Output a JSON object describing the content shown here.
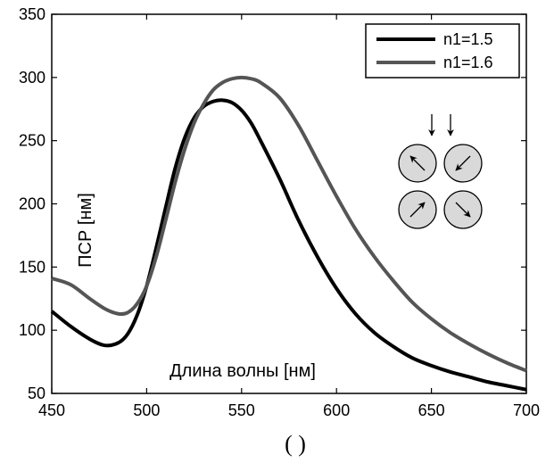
{
  "chart_data": {
    "type": "line",
    "title": "",
    "xlabel": "Длина волны [нм]",
    "ylabel": "ПСР [нм]",
    "xlim": [
      450,
      700
    ],
    "ylim": [
      50,
      350
    ],
    "xticks": [
      450,
      500,
      550,
      600,
      650,
      700
    ],
    "yticks": [
      50,
      100,
      150,
      200,
      250,
      300,
      350
    ],
    "grid": false,
    "legend_position": "top-right",
    "caption": "( )",
    "series": [
      {
        "name": "n1=1.5",
        "color": "#000000",
        "x": [
          450,
          460,
          470,
          478,
          485,
          490,
          495,
          500,
          505,
          510,
          515,
          520,
          525,
          530,
          535,
          540,
          545,
          550,
          555,
          560,
          570,
          580,
          590,
          600,
          610,
          620,
          630,
          640,
          650,
          660,
          670,
          680,
          690,
          700
        ],
        "y": [
          115,
          103,
          93,
          88,
          90,
          97,
          112,
          135,
          165,
          197,
          228,
          252,
          268,
          277,
          281,
          282,
          280,
          274,
          264,
          250,
          220,
          187,
          158,
          133,
          113,
          98,
          87,
          78,
          72,
          67,
          63,
          59,
          56,
          53
        ]
      },
      {
        "name": "n1=1.6",
        "color": "#555555",
        "x": [
          450,
          460,
          470,
          478,
          485,
          490,
          495,
          500,
          505,
          510,
          515,
          520,
          525,
          530,
          535,
          540,
          545,
          550,
          555,
          560,
          570,
          580,
          590,
          600,
          610,
          620,
          630,
          640,
          650,
          660,
          670,
          680,
          690,
          700
        ],
        "y": [
          141,
          136,
          125,
          117,
          113,
          114,
          121,
          135,
          158,
          187,
          217,
          243,
          264,
          279,
          290,
          296,
          299,
          300,
          299,
          296,
          284,
          262,
          234,
          206,
          180,
          158,
          139,
          122,
          109,
          98,
          89,
          81,
          74,
          68
        ]
      }
    ]
  },
  "inset": {
    "description_icon": "four-circles-with-arrows-icon",
    "fill_color": "#d9d9d9"
  }
}
